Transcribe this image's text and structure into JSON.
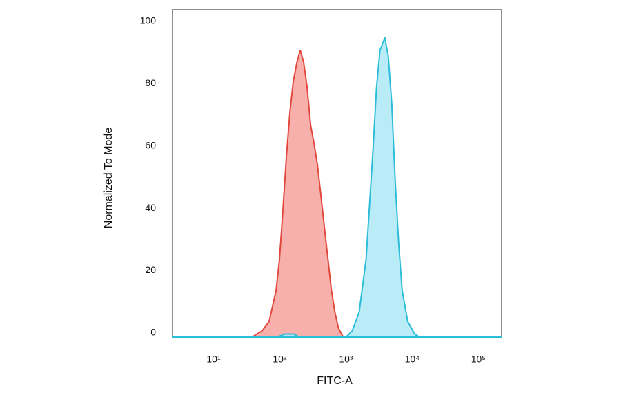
{
  "chart_data": {
    "type": "histogram-overlay",
    "x_label": "FITC-A",
    "y_label": "Normalized To Mode",
    "x_log": true,
    "xlim": [
      2.4,
      224000
    ],
    "ylim": [
      0,
      105
    ],
    "xticks": [
      {
        "value": 10,
        "label": "10¹"
      },
      {
        "value": 100,
        "label": "10²"
      },
      {
        "value": 1000,
        "label": "10³"
      },
      {
        "value": 10000,
        "label": "10⁴"
      },
      {
        "value": 100000,
        "label": "10⁵"
      }
    ],
    "yticks": [
      0,
      20,
      40,
      60,
      80,
      100
    ],
    "series": [
      {
        "color": "#e2473d",
        "fill": "#f6a29c",
        "x": [
          38,
          54,
          69,
          88,
          99,
          111,
          126,
          142,
          160,
          181,
          204,
          230,
          259,
          292,
          330,
          372,
          420,
          473,
          534,
          603,
          680,
          767,
          908
        ],
        "values": [
          0,
          2,
          5,
          15,
          25,
          40,
          58,
          72,
          82,
          88,
          92,
          88,
          80,
          68,
          62,
          55,
          45,
          35,
          25,
          15,
          8,
          3,
          0
        ]
      },
      {
        "color": "#2bbcd8",
        "fill": "#aee9f7",
        "x": [
          2.4,
          90,
          120,
          160,
          200,
          1000,
          1242,
          1580,
          2012,
          2560,
          2890,
          3260,
          3860,
          4350,
          4910,
          5540,
          6250,
          7050,
          8550,
          10900,
          12900,
          224000
        ],
        "values": [
          0,
          0,
          1,
          1,
          0,
          0,
          2,
          8,
          25,
          60,
          80,
          92,
          96,
          90,
          75,
          50,
          30,
          15,
          5,
          1,
          0,
          0
        ]
      }
    ]
  }
}
